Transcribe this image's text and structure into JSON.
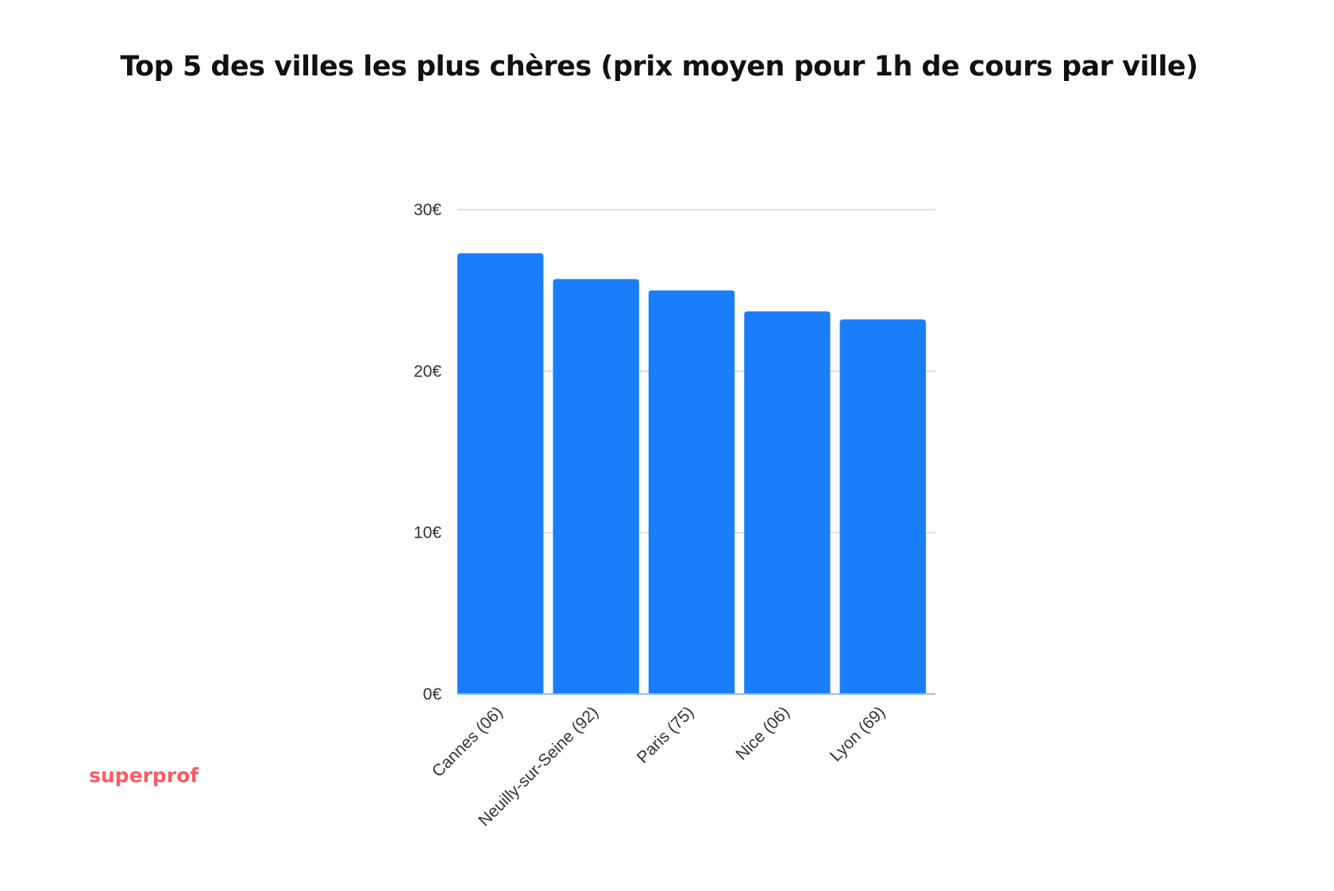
{
  "brand": {
    "logo_text": "superprof",
    "logo_color": "#ff5a5f"
  },
  "chart_data": {
    "type": "bar",
    "title": "Top 5 des villes les plus chères (prix moyen pour 1h de cours par ville)",
    "categories": [
      "Cannes (06)",
      "Neuilly-sur-Seine (92)",
      "Paris (75)",
      "Nice (06)",
      "Lyon (69)"
    ],
    "values": [
      27.3,
      25.7,
      25.0,
      23.7,
      23.2
    ],
    "unit": "€",
    "ylim": [
      0,
      30
    ],
    "yticks": [
      0,
      10,
      20,
      30
    ],
    "ytick_labels": [
      "0€",
      "10€",
      "20€",
      "30€"
    ],
    "xlabel": "",
    "ylabel": "",
    "grid": true,
    "legend": "none",
    "bar_color": "#1a7efb",
    "grid_color": "#cccccc"
  }
}
